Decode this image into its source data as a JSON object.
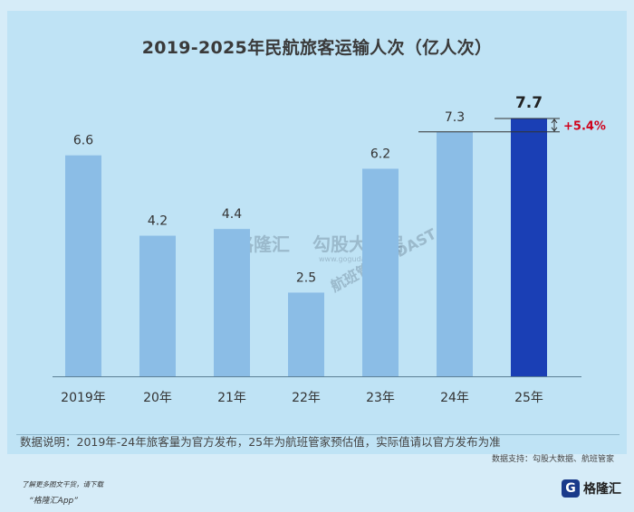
{
  "chart_data": {
    "type": "bar",
    "title": "2019-2025年民航旅客运输人次（亿人次）",
    "categories": [
      "2019年",
      "20年",
      "21年",
      "22年",
      "23年",
      "24年",
      "25年"
    ],
    "values": [
      6.6,
      4.2,
      4.4,
      2.5,
      6.2,
      7.3,
      7.7
    ],
    "data_labels": [
      "6.6",
      "4.2",
      "4.4",
      "2.5",
      "6.2",
      "7.3",
      "7.7"
    ],
    "ylim": [
      0,
      7.7
    ],
    "highlight_index": 6,
    "annotation": "+5.4%",
    "colors": {
      "bar": "#8bbde6",
      "highlight": "#1a3fb5",
      "annotation": "#d0021b"
    }
  },
  "note": "数据说明：2019年-24年旅客量为官方发布，25年为航班管家预估值，实际值请以官方发布为准",
  "source": "数据支持：勾股大数据、航班管家",
  "footer": {
    "download_line1": "了解更多图文干货，请下载",
    "download_line2": "“格隆汇App”",
    "logo_text": "格隆汇",
    "logo_mark": "G"
  },
  "watermarks": {
    "w1": "格隆汇",
    "w2": "勾股大数据",
    "w3": "www.gogudata.com",
    "w4": "航班管家 | DAST"
  }
}
